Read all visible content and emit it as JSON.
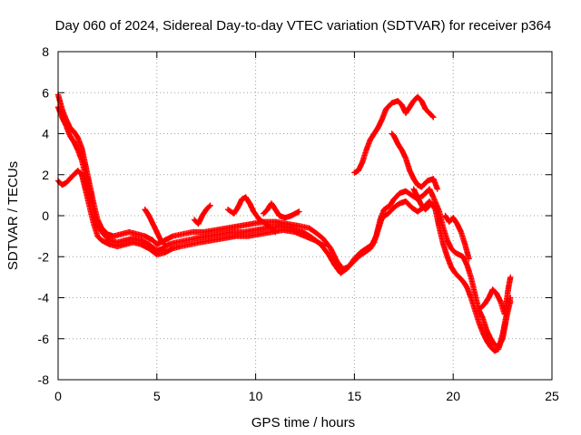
{
  "chart_data": {
    "type": "scatter",
    "title": "Day 060 of 2024, Sidereal Day-to-day VTEC variation (SDTVAR) for receiver p364",
    "xlabel": "GPS time / hours",
    "ylabel": "SDTVAR / TECUs",
    "xlim": [
      0,
      25
    ],
    "ylim": [
      -8,
      8
    ],
    "xticks": [
      0,
      5,
      10,
      15,
      20,
      25
    ],
    "yticks": [
      -8,
      -6,
      -4,
      -2,
      0,
      2,
      4,
      6,
      8
    ],
    "grid": true,
    "marker": "+",
    "series": [
      {
        "name": "SDTVAR",
        "color": "#ff0000",
        "tracks": [
          [
            [
              0.0,
              5.9
            ],
            [
              0.2,
              5.2
            ],
            [
              0.4,
              4.7
            ],
            [
              0.6,
              4.3
            ],
            [
              0.8,
              4.1
            ],
            [
              1.0,
              3.8
            ],
            [
              1.2,
              3.3
            ],
            [
              1.4,
              2.4
            ],
            [
              1.6,
              1.5
            ],
            [
              1.8,
              0.6
            ],
            [
              2.0,
              -0.2
            ],
            [
              2.2,
              -0.6
            ],
            [
              2.5,
              -0.9
            ],
            [
              2.8,
              -1.0
            ],
            [
              3.2,
              -0.9
            ],
            [
              3.6,
              -0.8
            ],
            [
              4.0,
              -0.9
            ],
            [
              4.4,
              -1.0
            ],
            [
              4.8,
              -1.2
            ],
            [
              5.0,
              -1.4
            ],
            [
              5.4,
              -1.2
            ],
            [
              5.8,
              -1.0
            ],
            [
              6.3,
              -0.9
            ],
            [
              6.8,
              -0.8
            ],
            [
              7.4,
              -0.8
            ],
            [
              8.0,
              -0.7
            ],
            [
              8.6,
              -0.6
            ],
            [
              9.2,
              -0.5
            ],
            [
              9.8,
              -0.4
            ],
            [
              10.4,
              -0.3
            ],
            [
              11.0,
              -0.3
            ],
            [
              11.6,
              -0.4
            ],
            [
              12.2,
              -0.5
            ],
            [
              12.7,
              -0.6
            ],
            [
              13.0,
              -0.8
            ],
            [
              13.4,
              -1.1
            ],
            [
              13.8,
              -1.6
            ],
            [
              14.1,
              -2.2
            ],
            [
              14.4,
              -2.6
            ],
            [
              14.7,
              -2.5
            ],
            [
              15.0,
              -2.1
            ],
            [
              15.3,
              -1.8
            ],
            [
              15.6,
              -1.6
            ],
            [
              15.9,
              -1.4
            ],
            [
              16.1,
              -1.0
            ],
            [
              16.3,
              -0.2
            ],
            [
              16.5,
              0.3
            ],
            [
              16.8,
              0.5
            ],
            [
              17.0,
              0.8
            ],
            [
              17.3,
              1.1
            ],
            [
              17.6,
              1.2
            ],
            [
              17.9,
              1.0
            ],
            [
              18.2,
              0.8
            ],
            [
              18.5,
              1.0
            ],
            [
              18.8,
              1.3
            ],
            [
              19.0,
              0.9
            ],
            [
              19.3,
              0.2
            ],
            [
              19.5,
              -0.6
            ],
            [
              19.7,
              -1.2
            ],
            [
              19.9,
              -1.6
            ],
            [
              20.1,
              -1.8
            ],
            [
              20.3,
              -1.9
            ],
            [
              20.5,
              -2.0
            ],
            [
              20.7,
              -2.4
            ],
            [
              20.9,
              -3.0
            ],
            [
              21.1,
              -3.8
            ],
            [
              21.3,
              -4.6
            ],
            [
              21.5,
              -5.0
            ],
            [
              21.7,
              -5.6
            ],
            [
              21.9,
              -6.0
            ],
            [
              22.1,
              -6.3
            ],
            [
              22.3,
              -6.4
            ],
            [
              22.5,
              -6.0
            ],
            [
              22.7,
              -5.0
            ],
            [
              22.9,
              -4.0
            ]
          ],
          [
            [
              0.0,
              5.3
            ],
            [
              0.2,
              4.8
            ],
            [
              0.4,
              4.4
            ],
            [
              0.6,
              3.9
            ],
            [
              0.8,
              3.6
            ],
            [
              1.0,
              3.2
            ],
            [
              1.2,
              2.7
            ],
            [
              1.4,
              1.9
            ],
            [
              1.6,
              1.1
            ],
            [
              1.8,
              0.2
            ],
            [
              2.0,
              -0.5
            ],
            [
              2.3,
              -0.9
            ],
            [
              2.6,
              -1.2
            ],
            [
              3.0,
              -1.3
            ],
            [
              3.4,
              -1.2
            ],
            [
              3.8,
              -1.1
            ],
            [
              4.2,
              -1.2
            ],
            [
              4.6,
              -1.4
            ],
            [
              5.0,
              -1.7
            ],
            [
              5.3,
              -1.6
            ],
            [
              5.6,
              -1.4
            ],
            [
              6.0,
              -1.3
            ],
            [
              6.5,
              -1.2
            ],
            [
              7.0,
              -1.1
            ],
            [
              7.6,
              -1.0
            ],
            [
              8.2,
              -0.9
            ],
            [
              8.8,
              -0.8
            ],
            [
              9.4,
              -0.8
            ],
            [
              10.0,
              -0.7
            ],
            [
              10.6,
              -0.6
            ],
            [
              11.2,
              -0.5
            ],
            [
              11.8,
              -0.6
            ],
            [
              12.4,
              -0.8
            ],
            [
              12.9,
              -1.1
            ],
            [
              13.3,
              -1.4
            ],
            [
              13.7,
              -1.9
            ],
            [
              14.0,
              -2.4
            ],
            [
              14.3,
              -2.8
            ],
            [
              14.6,
              -2.6
            ],
            [
              14.9,
              -2.3
            ],
            [
              15.2,
              -2.0
            ],
            [
              15.5,
              -1.8
            ],
            [
              15.8,
              -1.6
            ],
            [
              16.0,
              -1.3
            ],
            [
              16.2,
              -0.7
            ],
            [
              16.4,
              -0.1
            ],
            [
              16.7,
              0.1
            ],
            [
              17.0,
              0.4
            ],
            [
              17.3,
              0.6
            ],
            [
              17.6,
              0.7
            ],
            [
              17.9,
              0.4
            ],
            [
              18.2,
              0.2
            ],
            [
              18.5,
              0.4
            ],
            [
              18.8,
              0.7
            ],
            [
              19.1,
              0.3
            ],
            [
              19.3,
              -0.6
            ],
            [
              19.5,
              -1.4
            ],
            [
              19.7,
              -2.0
            ],
            [
              19.9,
              -2.5
            ],
            [
              20.1,
              -2.8
            ],
            [
              20.3,
              -3.0
            ],
            [
              20.5,
              -3.2
            ],
            [
              20.7,
              -3.5
            ],
            [
              20.9,
              -4.0
            ],
            [
              21.1,
              -4.6
            ],
            [
              21.3,
              -5.2
            ],
            [
              21.5,
              -5.7
            ],
            [
              21.7,
              -6.1
            ],
            [
              21.9,
              -6.4
            ],
            [
              22.1,
              -6.6
            ],
            [
              22.3,
              -6.5
            ],
            [
              22.5,
              -5.8
            ],
            [
              22.7,
              -4.8
            ],
            [
              22.9,
              -4.2
            ]
          ],
          [
            [
              0.0,
              1.7
            ],
            [
              0.2,
              1.5
            ],
            [
              0.4,
              1.6
            ],
            [
              0.6,
              1.8
            ],
            [
              0.8,
              2.0
            ],
            [
              1.0,
              2.2
            ],
            [
              1.2,
              2.0
            ],
            [
              1.4,
              1.2
            ],
            [
              1.6,
              0.4
            ],
            [
              1.8,
              -0.4
            ],
            [
              2.0,
              -1.0
            ],
            [
              2.2,
              -1.2
            ],
            [
              2.6,
              -1.4
            ],
            [
              3.0,
              -1.5
            ],
            [
              3.4,
              -1.4
            ],
            [
              3.8,
              -1.3
            ],
            [
              4.2,
              -1.4
            ],
            [
              4.6,
              -1.6
            ],
            [
              5.0,
              -1.9
            ],
            [
              5.4,
              -1.8
            ],
            [
              5.8,
              -1.6
            ],
            [
              6.2,
              -1.5
            ],
            [
              6.7,
              -1.4
            ],
            [
              7.2,
              -1.3
            ],
            [
              7.8,
              -1.2
            ],
            [
              8.4,
              -1.1
            ],
            [
              9.0,
              -1.0
            ],
            [
              9.6,
              -1.0
            ],
            [
              10.2,
              -0.9
            ],
            [
              10.8,
              -0.8
            ],
            [
              11.4,
              -0.7
            ],
            [
              12.0,
              -0.8
            ],
            [
              12.5,
              -1.0
            ],
            [
              13.0,
              -1.2
            ],
            [
              13.5,
              -1.5
            ]
          ],
          [
            [
              4.4,
              0.3
            ],
            [
              4.6,
              0.0
            ],
            [
              4.8,
              -0.4
            ],
            [
              5.0,
              -0.8
            ],
            [
              5.2,
              -1.2
            ],
            [
              5.4,
              -1.4
            ]
          ],
          [
            [
              6.9,
              -0.2
            ],
            [
              7.1,
              -0.4
            ],
            [
              7.3,
              0.0
            ],
            [
              7.5,
              0.3
            ],
            [
              7.7,
              0.5
            ]
          ],
          [
            [
              8.6,
              0.3
            ],
            [
              8.9,
              0.1
            ],
            [
              9.1,
              0.4
            ],
            [
              9.3,
              0.8
            ],
            [
              9.5,
              0.9
            ],
            [
              9.7,
              0.6
            ],
            [
              9.9,
              0.2
            ],
            [
              10.2,
              -0.2
            ],
            [
              10.5,
              -0.4
            ],
            [
              10.8,
              -0.6
            ],
            [
              11.0,
              -0.8
            ]
          ],
          [
            [
              10.4,
              0.1
            ],
            [
              10.6,
              0.3
            ],
            [
              10.8,
              0.6
            ],
            [
              11.0,
              0.3
            ],
            [
              11.2,
              0.0
            ],
            [
              11.5,
              -0.1
            ],
            [
              11.8,
              0.0
            ],
            [
              12.0,
              0.1
            ],
            [
              12.2,
              0.2
            ]
          ],
          [
            [
              15.0,
              2.1
            ],
            [
              15.2,
              2.2
            ],
            [
              15.4,
              2.6
            ],
            [
              15.6,
              3.2
            ],
            [
              15.8,
              3.7
            ],
            [
              16.0,
              4.0
            ],
            [
              16.2,
              4.3
            ],
            [
              16.4,
              4.7
            ],
            [
              16.6,
              5.2
            ],
            [
              16.9,
              5.5
            ],
            [
              17.2,
              5.6
            ],
            [
              17.4,
              5.4
            ],
            [
              17.6,
              5.0
            ],
            [
              17.8,
              5.3
            ],
            [
              18.0,
              5.6
            ],
            [
              18.2,
              5.8
            ],
            [
              18.4,
              5.6
            ],
            [
              18.6,
              5.2
            ],
            [
              18.8,
              5.0
            ],
            [
              19.0,
              4.8
            ]
          ],
          [
            [
              16.9,
              4.0
            ],
            [
              17.0,
              3.9
            ],
            [
              17.2,
              3.5
            ],
            [
              17.4,
              3.2
            ],
            [
              17.6,
              2.8
            ],
            [
              17.8,
              2.2
            ],
            [
              18.0,
              1.8
            ],
            [
              18.2,
              1.5
            ],
            [
              18.4,
              1.4
            ],
            [
              18.7,
              1.7
            ],
            [
              19.0,
              1.8
            ],
            [
              19.2,
              1.3
            ]
          ],
          [
            [
              18.0,
              1.3
            ],
            [
              18.2,
              0.9
            ],
            [
              18.4,
              0.5
            ],
            [
              18.6,
              0.3
            ],
            [
              18.8,
              0.5
            ]
          ],
          [
            [
              19.6,
              0.0
            ],
            [
              19.8,
              -0.3
            ],
            [
              20.0,
              -0.1
            ],
            [
              20.2,
              -0.4
            ],
            [
              20.4,
              -0.8
            ],
            [
              20.6,
              -1.4
            ],
            [
              20.8,
              -2.1
            ]
          ],
          [
            [
              21.4,
              -4.5
            ],
            [
              21.6,
              -4.3
            ],
            [
              21.8,
              -4.0
            ],
            [
              22.0,
              -3.6
            ],
            [
              22.2,
              -3.8
            ],
            [
              22.4,
              -4.2
            ],
            [
              22.6,
              -4.8
            ],
            [
              22.8,
              -3.5
            ],
            [
              22.9,
              -3.0
            ]
          ]
        ]
      }
    ]
  }
}
